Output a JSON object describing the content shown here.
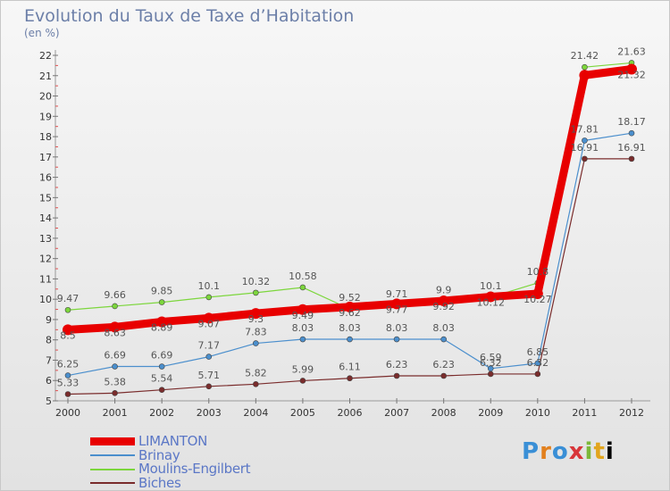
{
  "chart_data": {
    "type": "line",
    "title": "Evolution du Taux de Taxe d’Habitation",
    "unit": "(en %)",
    "categories": [
      "2000",
      "2001",
      "2002",
      "2003",
      "2004",
      "2005",
      "2006",
      "2007",
      "2008",
      "2009",
      "2010",
      "2011",
      "2012"
    ],
    "ylim": [
      5,
      22
    ],
    "yticks": [
      5,
      6,
      7,
      8,
      9,
      10,
      11,
      12,
      13,
      14,
      15,
      16,
      17,
      18,
      19,
      20,
      21,
      22
    ],
    "grid": false,
    "legend_position": "bottom-left",
    "series": [
      {
        "name": "LIMANTON",
        "color": "#e80000",
        "values": [
          8.5,
          8.63,
          8.89,
          9.07,
          9.3,
          9.49,
          9.62,
          9.77,
          9.92,
          10.12,
          10.27,
          21.02,
          21.32
        ],
        "labels": [
          "8.5",
          "8.63",
          "8.89",
          "9.07",
          "9.3",
          "9.49",
          "9.62",
          "9.77",
          "9.92",
          "10.12",
          "10.27",
          "",
          "21.32"
        ]
      },
      {
        "name": "Brinay",
        "color": "#4b8fcd",
        "values": [
          6.25,
          6.69,
          6.69,
          7.17,
          7.83,
          8.03,
          8.03,
          8.03,
          8.03,
          6.59,
          6.85,
          17.81,
          18.17
        ],
        "labels": [
          "6.25",
          "6.69",
          "6.69",
          "7.17",
          "7.83",
          "8.03",
          "8.03",
          "8.03",
          "8.03",
          "6.59",
          "6.85",
          "17.81",
          "18.17"
        ]
      },
      {
        "name": "Moulins-Engilbert",
        "color": "#7cd63c",
        "values": [
          9.47,
          9.66,
          9.85,
          10.1,
          10.32,
          10.58,
          9.52,
          9.71,
          9.9,
          10.1,
          10.8,
          21.42,
          21.63
        ],
        "labels": [
          "9.47",
          "9.66",
          "9.85",
          "10.1",
          "10.32",
          "10.58",
          "9.52",
          "9.71",
          "9.9",
          "10.1",
          "10.8",
          "21.42",
          "21.63"
        ]
      },
      {
        "name": "Biches",
        "color": "#7a2c2c",
        "values": [
          5.33,
          5.38,
          5.54,
          5.71,
          5.82,
          5.99,
          6.11,
          6.23,
          6.23,
          6.32,
          6.32,
          16.91,
          16.91
        ],
        "labels": [
          "5.33",
          "5.38",
          "5.54",
          "5.71",
          "5.82",
          "5.99",
          "6.11",
          "6.23",
          "6.23",
          "6.32",
          "6.32",
          "16.91",
          "16.91"
        ]
      }
    ]
  },
  "logo": {
    "text": [
      "P",
      "r",
      "o",
      "x",
      "i",
      "t",
      "i"
    ]
  }
}
